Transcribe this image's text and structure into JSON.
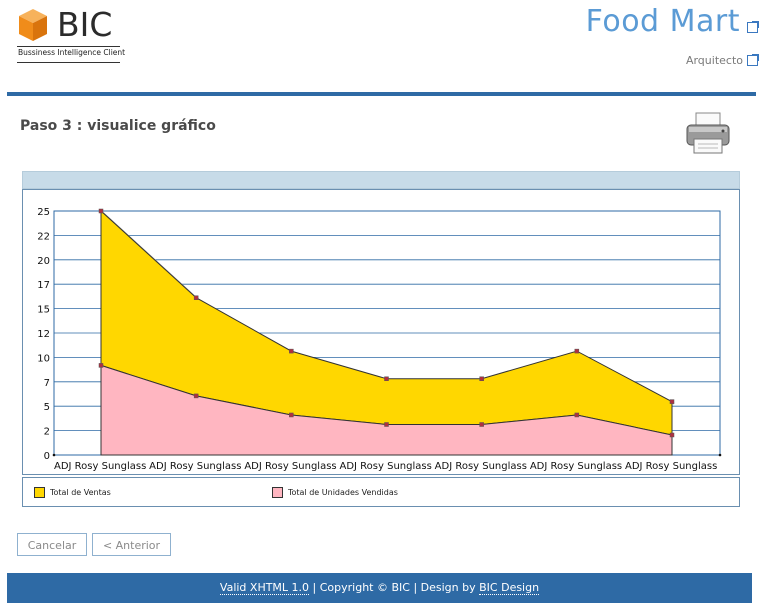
{
  "header": {
    "logo_name": "BIC",
    "logo_subtitle": "Bussiness Intelligence Client",
    "app_title": "Food Mart",
    "role_link": "Arquitecto"
  },
  "page": {
    "title": "Paso 3 : visualice gráfico"
  },
  "chart_data": {
    "type": "area",
    "categories": [
      "ADJ Rosy Sunglass",
      "ADJ Rosy Sunglass",
      "ADJ Rosy Sunglass",
      "ADJ Rosy Sunglass",
      "ADJ Rosy Sunglass",
      "ADJ Rosy Sunglass",
      "ADJ Rosy Sunglass"
    ],
    "series": [
      {
        "name": "Total de Ventas",
        "values": [
          25.6,
          16.5,
          10.9,
          8.0,
          8.0,
          10.9,
          5.6
        ],
        "color": "#ffd700"
      },
      {
        "name": "Total de Unidades Vendidas",
        "values": [
          9.4,
          6.2,
          4.2,
          3.2,
          3.2,
          4.2,
          2.1
        ],
        "color": "#ffb6c1"
      }
    ],
    "yticks": [
      "0",
      "2",
      "5",
      "7",
      "10",
      "12",
      "15",
      "17",
      "20",
      "22",
      "25"
    ],
    "ylim": [
      0,
      25.6
    ],
    "grid": true,
    "legend_position": "bottom"
  },
  "buttons": {
    "cancel_label": "Cancelar",
    "back_label": "< Anterior"
  },
  "footer": {
    "valid": "Valid XHTML 1.0",
    "sep1": " | Copyright © BIC | Design by ",
    "design": "BIC Design"
  }
}
